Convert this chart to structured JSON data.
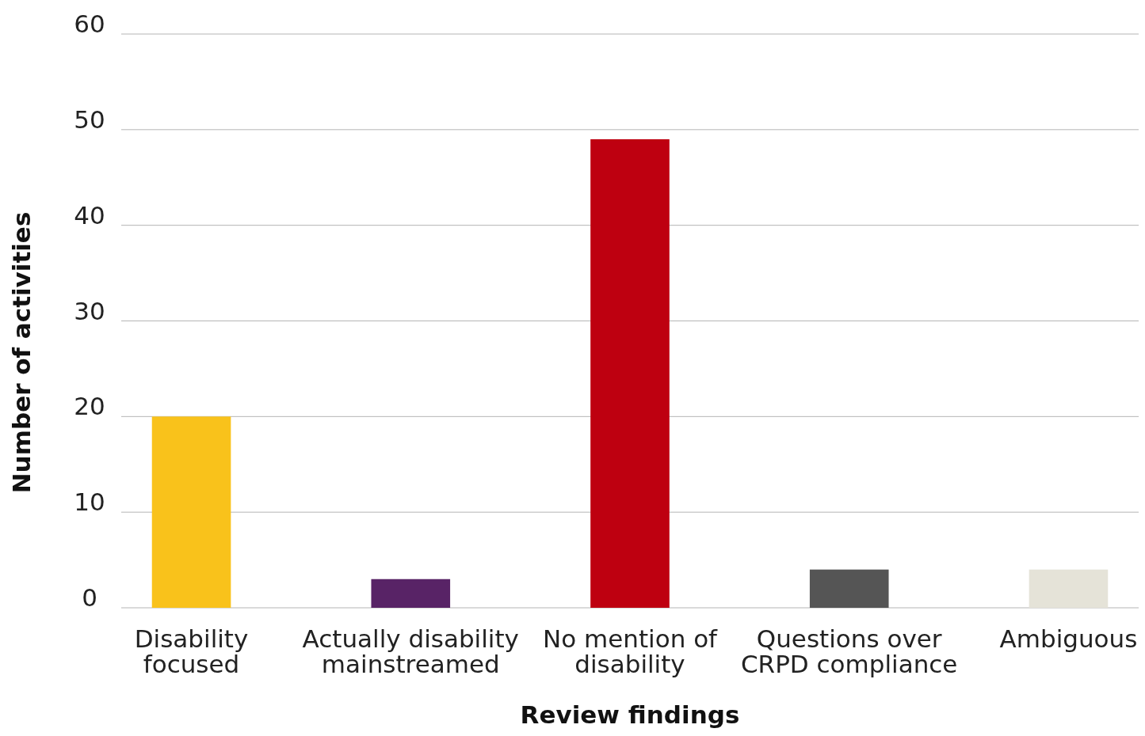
{
  "chart_data": {
    "type": "bar",
    "xlabel": "Review findings",
    "ylabel": "Number of activities",
    "categories": [
      "Disability\nfocused",
      "Actually disability\nmainstreamed",
      "No mention of\ndisability",
      "Questions over\nCRPD compliance",
      "Ambiguous"
    ],
    "values": [
      20,
      3,
      49,
      4,
      4
    ],
    "colors": [
      "#f9c21b",
      "#582366",
      "#be0010",
      "#555555",
      "#e5e3d8"
    ],
    "ylim": [
      0,
      60
    ],
    "yticks": [
      0,
      10,
      20,
      30,
      40,
      50,
      60
    ],
    "grid": "y"
  }
}
